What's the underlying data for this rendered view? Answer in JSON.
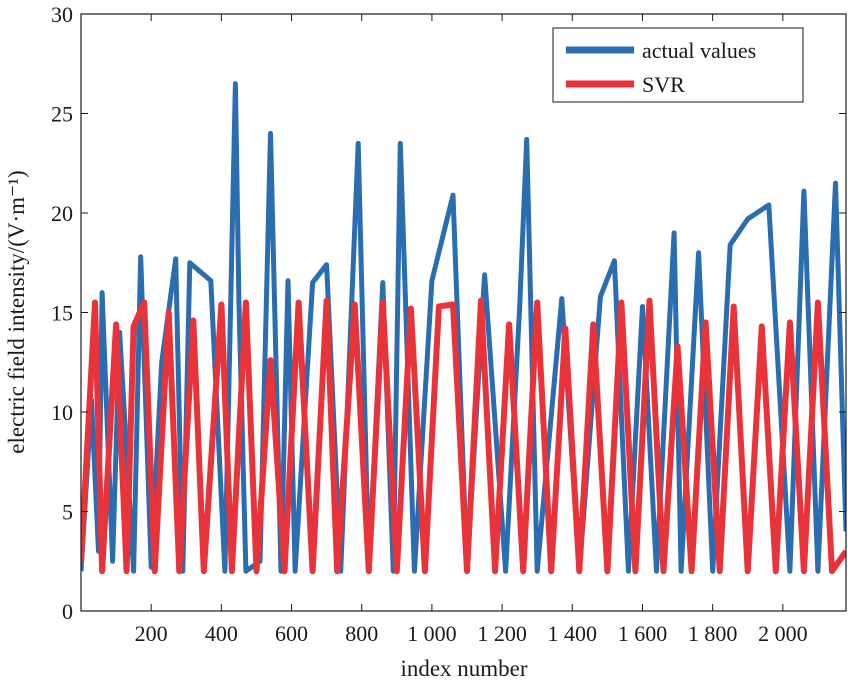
{
  "chart_data": {
    "type": "line",
    "xlabel": "index number",
    "ylabel": "electric field intensity/(V·m⁻¹)",
    "xlim": [
      0,
      2180
    ],
    "ylim": [
      0,
      30
    ],
    "grid": false,
    "legend_position": "top-right",
    "xticks": [
      {
        "value": 200,
        "label": "200"
      },
      {
        "value": 400,
        "label": "400"
      },
      {
        "value": 600,
        "label": "600"
      },
      {
        "value": 800,
        "label": "800"
      },
      {
        "value": 1000,
        "label": "1 000"
      },
      {
        "value": 1200,
        "label": "1 200"
      },
      {
        "value": 1400,
        "label": "1 400"
      },
      {
        "value": 1600,
        "label": "1 600"
      },
      {
        "value": 1800,
        "label": "1 800"
      },
      {
        "value": 2000,
        "label": "2 000"
      }
    ],
    "yticks": [
      {
        "value": 0,
        "label": "0"
      },
      {
        "value": 5,
        "label": "5"
      },
      {
        "value": 10,
        "label": "10"
      },
      {
        "value": 15,
        "label": "15"
      },
      {
        "value": 20,
        "label": "20"
      },
      {
        "value": 25,
        "label": "25"
      },
      {
        "value": 30,
        "label": "30"
      }
    ],
    "series": [
      {
        "name": "actual values",
        "color": "#2a6db0",
        "x": [
          0,
          30,
          50,
          60,
          90,
          110,
          150,
          170,
          200,
          230,
          270,
          290,
          310,
          370,
          410,
          440,
          450,
          470,
          510,
          540,
          570,
          590,
          610,
          660,
          700,
          740,
          790,
          820,
          860,
          890,
          910,
          950,
          1000,
          1060,
          1100,
          1150,
          1210,
          1250,
          1270,
          1300,
          1370,
          1420,
          1480,
          1520,
          1560,
          1600,
          1640,
          1690,
          1710,
          1760,
          1800,
          1850,
          1900,
          1960,
          2020,
          2060,
          2100,
          2150,
          2180
        ],
        "y": [
          2.0,
          10.6,
          3.0,
          16.0,
          2.5,
          14.0,
          2.0,
          17.8,
          2.2,
          12.5,
          17.7,
          2.0,
          17.5,
          16.6,
          2.0,
          26.5,
          15.6,
          2.0,
          2.5,
          24.0,
          2.0,
          16.6,
          2.0,
          16.5,
          17.4,
          2.0,
          23.5,
          2.0,
          16.5,
          2.0,
          23.5,
          2.0,
          16.6,
          20.9,
          2.0,
          16.9,
          2.0,
          15.2,
          23.7,
          2.0,
          15.7,
          2.0,
          15.8,
          17.6,
          2.0,
          15.3,
          2.0,
          19.0,
          2.0,
          18.0,
          2.0,
          18.4,
          19.7,
          20.4,
          2.0,
          21.1,
          2.0,
          21.5,
          4.0
        ]
      },
      {
        "name": "SVR",
        "color": "#e8333a",
        "x": [
          0,
          40,
          60,
          100,
          130,
          150,
          180,
          210,
          250,
          280,
          320,
          350,
          400,
          430,
          470,
          500,
          540,
          580,
          620,
          660,
          700,
          730,
          780,
          820,
          860,
          900,
          940,
          980,
          1020,
          1060,
          1100,
          1140,
          1180,
          1220,
          1260,
          1300,
          1340,
          1380,
          1420,
          1460,
          1500,
          1540,
          1580,
          1620,
          1660,
          1700,
          1740,
          1780,
          1820,
          1860,
          1900,
          1940,
          1980,
          2020,
          2060,
          2100,
          2140,
          2180
        ],
        "y": [
          2.5,
          15.5,
          2.0,
          14.4,
          2.0,
          14.3,
          15.5,
          2.0,
          15.0,
          2.0,
          14.6,
          2.0,
          15.4,
          2.0,
          15.5,
          2.0,
          12.6,
          2.0,
          15.5,
          2.0,
          15.6,
          2.0,
          15.4,
          2.0,
          15.5,
          2.0,
          15.2,
          2.0,
          15.3,
          15.4,
          2.0,
          15.6,
          2.0,
          14.4,
          2.0,
          15.5,
          2.0,
          14.2,
          2.0,
          14.4,
          2.0,
          15.5,
          2.0,
          15.6,
          2.0,
          13.3,
          2.0,
          14.5,
          2.0,
          15.3,
          2.0,
          14.3,
          2.0,
          14.5,
          2.0,
          15.5,
          2.0,
          3.0
        ]
      }
    ]
  }
}
